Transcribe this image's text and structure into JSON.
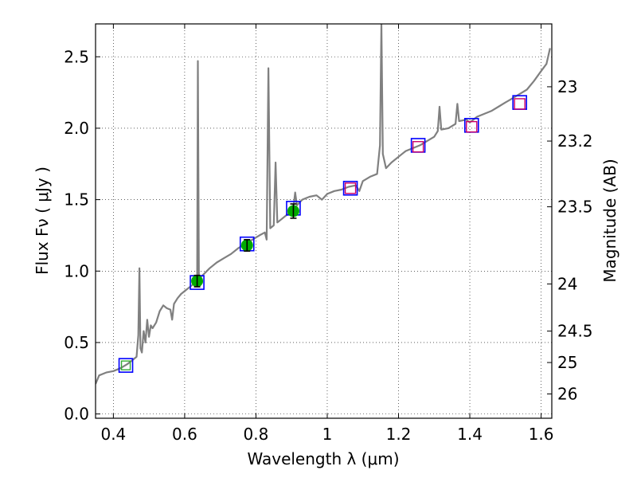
{
  "chart_data": {
    "type": "scatter",
    "xlabel": "Wavelength  λ (μm)",
    "ylabel_left": "Flux  Fν  ( μJy )",
    "ylabel_right": "Magnitude (AB)",
    "xlim": [
      0.35,
      1.63
    ],
    "ylim": [
      -0.03,
      2.73
    ],
    "grid": true,
    "colors": {
      "spectrum": "#808080",
      "model_marker": "#0000ff",
      "observed_marker": "#00aa00",
      "upper_marker": "#cc0066",
      "hst_marker": "#33aa33",
      "errorbar": "#000000"
    },
    "x_ticks": [
      {
        "value": 0.4,
        "label": "0.4"
      },
      {
        "value": 0.6,
        "label": "0.6"
      },
      {
        "value": 0.8,
        "label": "0.8"
      },
      {
        "value": 1.0,
        "label": "1"
      },
      {
        "value": 1.2,
        "label": "1.2"
      },
      {
        "value": 1.4,
        "label": "1.4"
      },
      {
        "value": 1.6,
        "label": "1.6"
      }
    ],
    "y_ticks": [
      {
        "value": 0.0,
        "label": "0.0"
      },
      {
        "value": 0.5,
        "label": "0.5"
      },
      {
        "value": 1.0,
        "label": "1.0"
      },
      {
        "value": 1.5,
        "label": "1.5"
      },
      {
        "value": 2.0,
        "label": "2.0"
      },
      {
        "value": 2.5,
        "label": "2.5"
      }
    ],
    "mag_ticks": [
      {
        "flux": 2.29,
        "label": "23"
      },
      {
        "flux": 1.91,
        "label": "23.2"
      },
      {
        "flux": 1.45,
        "label": "23.5"
      },
      {
        "flux": 0.91,
        "label": "24"
      },
      {
        "flux": 0.58,
        "label": "24.5"
      },
      {
        "flux": 0.36,
        "label": "25"
      },
      {
        "flux": 0.14,
        "label": "26"
      }
    ],
    "series": [
      {
        "kind": "spectrum",
        "points": [
          [
            0.35,
            0.21
          ],
          [
            0.36,
            0.27
          ],
          [
            0.38,
            0.29
          ],
          [
            0.4,
            0.3
          ],
          [
            0.42,
            0.32
          ],
          [
            0.44,
            0.35
          ],
          [
            0.455,
            0.38
          ],
          [
            0.465,
            0.4
          ],
          [
            0.47,
            0.55
          ],
          [
            0.473,
            1.02
          ],
          [
            0.476,
            0.46
          ],
          [
            0.48,
            0.43
          ],
          [
            0.485,
            0.58
          ],
          [
            0.49,
            0.5
          ],
          [
            0.495,
            0.66
          ],
          [
            0.5,
            0.54
          ],
          [
            0.505,
            0.62
          ],
          [
            0.51,
            0.6
          ],
          [
            0.52,
            0.64
          ],
          [
            0.53,
            0.72
          ],
          [
            0.54,
            0.76
          ],
          [
            0.55,
            0.74
          ],
          [
            0.56,
            0.73
          ],
          [
            0.565,
            0.66
          ],
          [
            0.57,
            0.77
          ],
          [
            0.58,
            0.81
          ],
          [
            0.59,
            0.84
          ],
          [
            0.6,
            0.86
          ],
          [
            0.61,
            0.88
          ],
          [
            0.62,
            0.9
          ],
          [
            0.63,
            0.92
          ],
          [
            0.635,
            0.93
          ],
          [
            0.637,
            2.47
          ],
          [
            0.64,
            0.95
          ],
          [
            0.65,
            0.97
          ],
          [
            0.67,
            1.02
          ],
          [
            0.69,
            1.06
          ],
          [
            0.71,
            1.09
          ],
          [
            0.73,
            1.12
          ],
          [
            0.75,
            1.16
          ],
          [
            0.77,
            1.19
          ],
          [
            0.79,
            1.22
          ],
          [
            0.81,
            1.25
          ],
          [
            0.825,
            1.27
          ],
          [
            0.83,
            1.22
          ],
          [
            0.835,
            2.42
          ],
          [
            0.84,
            1.3
          ],
          [
            0.85,
            1.32
          ],
          [
            0.855,
            1.76
          ],
          [
            0.86,
            1.34
          ],
          [
            0.87,
            1.36
          ],
          [
            0.89,
            1.4
          ],
          [
            0.905,
            1.44
          ],
          [
            0.91,
            1.55
          ],
          [
            0.915,
            1.46
          ],
          [
            0.93,
            1.5
          ],
          [
            0.95,
            1.52
          ],
          [
            0.97,
            1.53
          ],
          [
            0.985,
            1.5
          ],
          [
            1.0,
            1.54
          ],
          [
            1.02,
            1.56
          ],
          [
            1.04,
            1.57
          ],
          [
            1.06,
            1.59
          ],
          [
            1.08,
            1.6
          ],
          [
            1.09,
            1.56
          ],
          [
            1.1,
            1.63
          ],
          [
            1.12,
            1.66
          ],
          [
            1.14,
            1.68
          ],
          [
            1.148,
            1.88
          ],
          [
            1.152,
            2.73
          ],
          [
            1.156,
            1.82
          ],
          [
            1.165,
            1.72
          ],
          [
            1.18,
            1.76
          ],
          [
            1.2,
            1.8
          ],
          [
            1.22,
            1.84
          ],
          [
            1.24,
            1.86
          ],
          [
            1.26,
            1.88
          ],
          [
            1.28,
            1.91
          ],
          [
            1.3,
            1.94
          ],
          [
            1.31,
            1.98
          ],
          [
            1.315,
            2.15
          ],
          [
            1.32,
            1.99
          ],
          [
            1.34,
            2.0
          ],
          [
            1.36,
            2.03
          ],
          [
            1.365,
            2.17
          ],
          [
            1.37,
            2.05
          ],
          [
            1.39,
            2.06
          ],
          [
            1.4,
            2.04
          ],
          [
            1.42,
            2.08
          ],
          [
            1.44,
            2.1
          ],
          [
            1.46,
            2.12
          ],
          [
            1.48,
            2.15
          ],
          [
            1.5,
            2.18
          ],
          [
            1.52,
            2.21
          ],
          [
            1.54,
            2.24
          ],
          [
            1.56,
            2.27
          ],
          [
            1.58,
            2.33
          ],
          [
            1.6,
            2.4
          ],
          [
            1.615,
            2.45
          ],
          [
            1.625,
            2.56
          ]
        ]
      },
      {
        "kind": "model-photometry",
        "points": [
          [
            0.435,
            0.34
          ],
          [
            0.635,
            0.92
          ],
          [
            0.775,
            1.19
          ],
          [
            0.905,
            1.44
          ],
          [
            1.065,
            1.58
          ],
          [
            1.255,
            1.88
          ],
          [
            1.405,
            2.02
          ],
          [
            1.54,
            2.18
          ]
        ]
      },
      {
        "kind": "observed",
        "points": [
          [
            0.635,
            0.93,
            0.04
          ],
          [
            0.775,
            1.18,
            0.04
          ],
          [
            0.905,
            1.42,
            0.05
          ]
        ]
      },
      {
        "kind": "upper-limits",
        "points": [
          [
            1.065,
            1.58
          ],
          [
            1.255,
            1.87
          ],
          [
            1.405,
            2.01
          ],
          [
            1.54,
            2.17
          ]
        ]
      },
      {
        "kind": "hst",
        "points": [
          [
            0.435,
            0.34
          ]
        ]
      }
    ]
  }
}
